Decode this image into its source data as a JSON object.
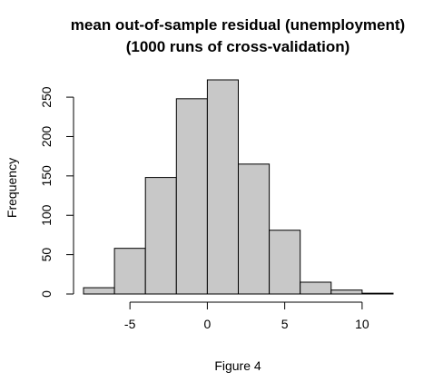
{
  "chart_data": {
    "type": "bar",
    "title": "mean out-of-sample residual (unemployment)",
    "subtitle": "(1000 runs of cross-validation)",
    "xlabel": "Figure 4",
    "ylabel": "Frequency",
    "bins": [
      {
        "x0": -8,
        "x1": -6,
        "value": 8
      },
      {
        "x0": -6,
        "x1": -4,
        "value": 58
      },
      {
        "x0": -4,
        "x1": -2,
        "value": 148
      },
      {
        "x0": -2,
        "x1": 0,
        "value": 248
      },
      {
        "x0": 0,
        "x1": 2,
        "value": 272
      },
      {
        "x0": 2,
        "x1": 4,
        "value": 165
      },
      {
        "x0": 4,
        "x1": 6,
        "value": 81
      },
      {
        "x0": 6,
        "x1": 8,
        "value": 15
      },
      {
        "x0": 8,
        "x1": 10,
        "value": 5
      },
      {
        "x0": 10,
        "x1": 12,
        "value": 1
      }
    ],
    "xlim": [
      -8,
      12
    ],
    "ylim": [
      0,
      272
    ],
    "xticks": [
      "-5",
      "0",
      "5",
      "10"
    ],
    "xtick_values": [
      -5,
      0,
      5,
      10
    ],
    "yticks": [
      "0",
      "50",
      "100",
      "150",
      "200",
      "250"
    ],
    "ytick_values": [
      0,
      50,
      100,
      150,
      200,
      250
    ],
    "bar_color": "#c8c8c8",
    "grid": false,
    "legend": "none"
  }
}
